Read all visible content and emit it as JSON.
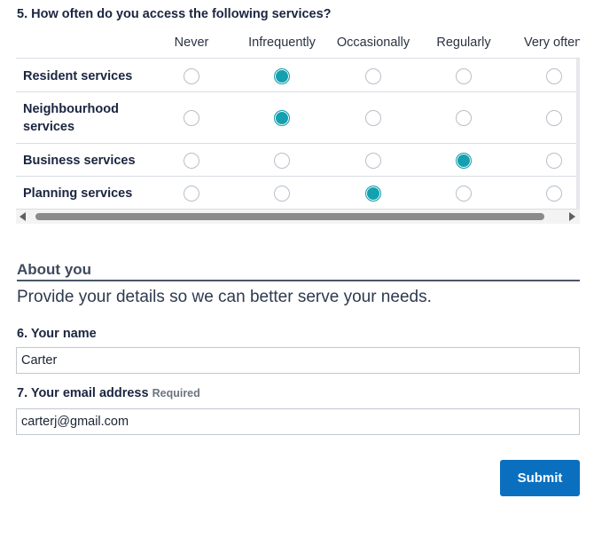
{
  "survey": {
    "question5": {
      "title": "5. How often do you access the following services?",
      "columns": [
        "Never",
        "Infrequently",
        "Occasionally",
        "Regularly",
        "Very often"
      ],
      "rows": [
        {
          "label_lines": [
            "Resident services"
          ],
          "selected": 1
        },
        {
          "label_lines": [
            "Neighbourhood",
            "services"
          ],
          "selected": 1
        },
        {
          "label_lines": [
            "Business services"
          ],
          "selected": 3
        },
        {
          "label_lines": [
            "Planning services"
          ],
          "selected": 2
        }
      ]
    },
    "about": {
      "heading": "About you",
      "description": "Provide your details so we can better serve your needs."
    },
    "name_field": {
      "label": "6. Your name",
      "value": "Carter"
    },
    "email_field": {
      "label": "7. Your email address",
      "required_label": "Required",
      "value": "carterj@gmail.com"
    },
    "submit_label": "Submit"
  },
  "colors": {
    "accent": "#15a0b0",
    "submit": "#0a6fbf"
  }
}
